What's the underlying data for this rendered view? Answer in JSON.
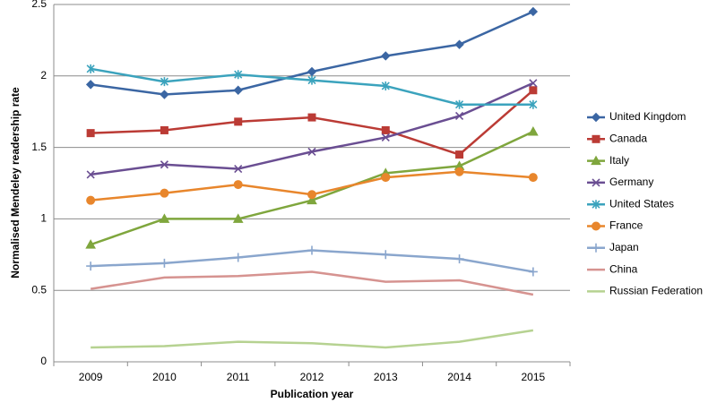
{
  "chart_data": {
    "type": "line",
    "x_label": "Publication year",
    "y_label": "Normalised Mendeley readership rate",
    "categories": [
      "2009",
      "2010",
      "2011",
      "2012",
      "2013",
      "2014",
      "2015"
    ],
    "ylim": [
      0,
      2.5
    ],
    "yticks": [
      0,
      0.5,
      1,
      1.5,
      2,
      2.5
    ],
    "grid": true,
    "legend": "right",
    "series": [
      {
        "name": "United Kingdom",
        "color": "#3b66a3",
        "marker": "diamond",
        "values": [
          1.94,
          1.87,
          1.9,
          2.03,
          2.14,
          2.22,
          2.45
        ]
      },
      {
        "name": "Canada",
        "color": "#bb3b35",
        "marker": "square",
        "values": [
          1.6,
          1.62,
          1.68,
          1.71,
          1.62,
          1.45,
          1.9
        ]
      },
      {
        "name": "Italy",
        "color": "#7fa63d",
        "marker": "triangle",
        "values": [
          0.82,
          1.0,
          1.0,
          1.13,
          1.32,
          1.37,
          1.61
        ]
      },
      {
        "name": "Germany",
        "color": "#6a4e92",
        "marker": "x",
        "values": [
          1.31,
          1.38,
          1.35,
          1.47,
          1.57,
          1.72,
          1.95
        ]
      },
      {
        "name": "United States",
        "color": "#3ba3bd",
        "marker": "star",
        "values": [
          2.05,
          1.96,
          2.01,
          1.97,
          1.93,
          1.8,
          1.8
        ]
      },
      {
        "name": "France",
        "color": "#e8862c",
        "marker": "circle",
        "values": [
          1.13,
          1.18,
          1.24,
          1.17,
          1.29,
          1.33,
          1.29
        ]
      },
      {
        "name": "Japan",
        "color": "#8aa6cd",
        "marker": "plus",
        "values": [
          0.67,
          0.69,
          0.73,
          0.78,
          0.75,
          0.72,
          0.63
        ]
      },
      {
        "name": "China",
        "color": "#d69390",
        "marker": "none",
        "values": [
          0.51,
          0.59,
          0.6,
          0.63,
          0.56,
          0.57,
          0.47
        ]
      },
      {
        "name": "Russian Federation",
        "color": "#b6d291",
        "marker": "none",
        "values": [
          0.1,
          0.11,
          0.14,
          0.13,
          0.1,
          0.14,
          0.22
        ]
      }
    ]
  }
}
